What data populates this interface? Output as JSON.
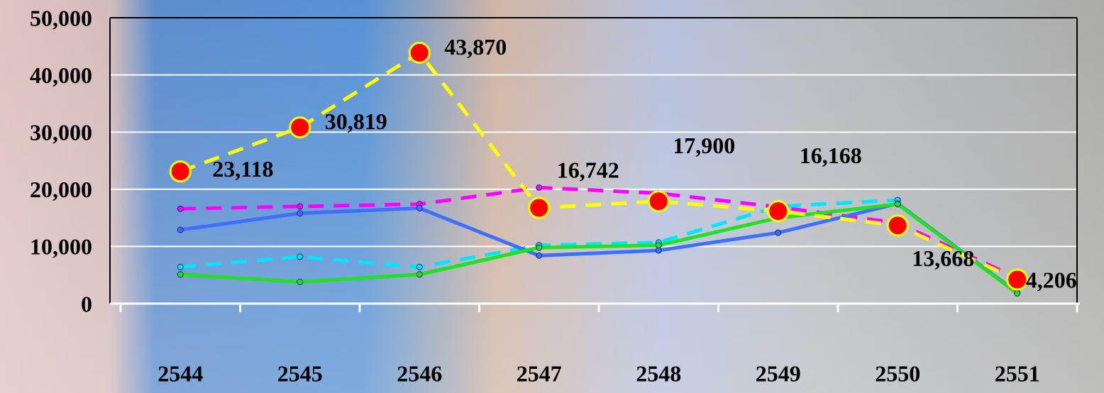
{
  "chart_data": {
    "type": "line",
    "categories": [
      "2544",
      "2545",
      "2546",
      "2547",
      "2548",
      "2549",
      "2550",
      "2551"
    ],
    "series": [
      {
        "color": "#ff00ff",
        "dash": true,
        "values": [
          16600,
          17000,
          17400,
          20300,
          19300,
          16900,
          14100,
          4500
        ]
      },
      {
        "color": "#00e5ff",
        "dash": true,
        "values": [
          6400,
          8200,
          6400,
          10200,
          10700,
          17000,
          18100,
          null
        ]
      },
      {
        "color": "#3f6fff",
        "dash": false,
        "values": [
          12900,
          15800,
          16700,
          8400,
          9300,
          12400,
          17500,
          1900
        ]
      },
      {
        "color": "#22e022",
        "dash": false,
        "values": [
          5100,
          3800,
          5100,
          9800,
          10200,
          15000,
          17400,
          1800
        ]
      },
      {
        "color": "#ffff00",
        "dash": true,
        "markers": "#ff0000",
        "values": [
          23118,
          30819,
          43870,
          16742,
          17900,
          16168,
          13668,
          4206
        ],
        "value_labels": [
          "23,118",
          "30,819",
          "43,870",
          "16,742",
          "17,900",
          "16,168",
          "13,668",
          "4,206"
        ]
      }
    ],
    "ylim": [
      0,
      50000
    ],
    "yticks": [
      0,
      {
        "value": 10000,
        "label": "10,000"
      },
      {
        "value": 20000,
        "label": "20,000"
      },
      {
        "value": 30000,
        "label": "30,000"
      },
      {
        "value": 40000,
        "label": "40,000"
      },
      {
        "value": 50000,
        "label": "50,000"
      }
    ],
    "grid": true
  }
}
